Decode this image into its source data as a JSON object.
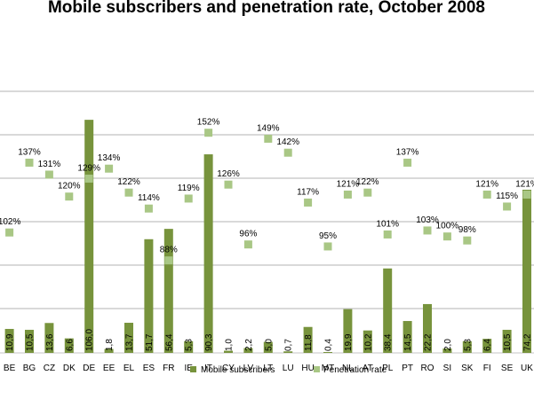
{
  "chart_data": {
    "type": "bar",
    "title": "Mobile subscribers and penetration rate, October 2008",
    "categories": [
      "BE",
      "BG",
      "CZ",
      "DK",
      "DE",
      "EE",
      "EL",
      "ES",
      "FR",
      "IE",
      "IT",
      "CY",
      "LV",
      "LT",
      "LU",
      "HU",
      "MT",
      "NL",
      "AT",
      "PL",
      "PT",
      "RO",
      "SI",
      "SK",
      "FI",
      "SE",
      "UK"
    ],
    "series": [
      {
        "name": "Mobile subscribers",
        "kind": "bar",
        "color": "#77933c",
        "values": [
          10.9,
          10.5,
          13.6,
          6.6,
          106.0,
          1.8,
          13.7,
          51.7,
          56.4,
          5.3,
          90.3,
          1.0,
          2.2,
          5.0,
          0.7,
          11.8,
          0.4,
          19.9,
          10.2,
          38.4,
          14.5,
          22.2,
          2.0,
          5.3,
          6.4,
          10.5,
          74.2
        ],
        "labels": [
          "10,9",
          "10,5",
          "13,6",
          "6,6",
          "106,0",
          "1,8",
          "13,7",
          "51,7",
          "56,4",
          "5,3",
          "90,3",
          "1,0",
          "2,2",
          "5,0",
          "0,7",
          "11,8",
          "0,4",
          "19,9",
          "10,2",
          "38,4",
          "14,5",
          "22,2",
          "2,0",
          "5,3",
          "6,4",
          "10,5",
          "74,2"
        ]
      },
      {
        "name": "Penetration rate",
        "kind": "marker",
        "color": "#a9c785",
        "values": [
          102,
          137,
          131,
          120,
          129,
          134,
          122,
          114,
          88,
          119,
          152,
          126,
          96,
          149,
          142,
          117,
          95,
          121,
          122,
          101,
          137,
          103,
          100,
          98,
          121,
          115,
          121
        ],
        "labels": [
          "102%",
          "137%",
          "131%",
          "120%",
          "129%",
          "134%",
          "122%",
          "114%",
          "88%",
          "119%",
          "152%",
          "126%",
          "96%",
          "149%",
          "142%",
          "117%",
          "95%",
          "121%",
          "122%",
          "101%",
          "137%",
          "103%",
          "100%",
          "98%",
          "121%",
          "115%",
          "121%"
        ]
      }
    ],
    "grid": true,
    "legend": "bottom"
  }
}
